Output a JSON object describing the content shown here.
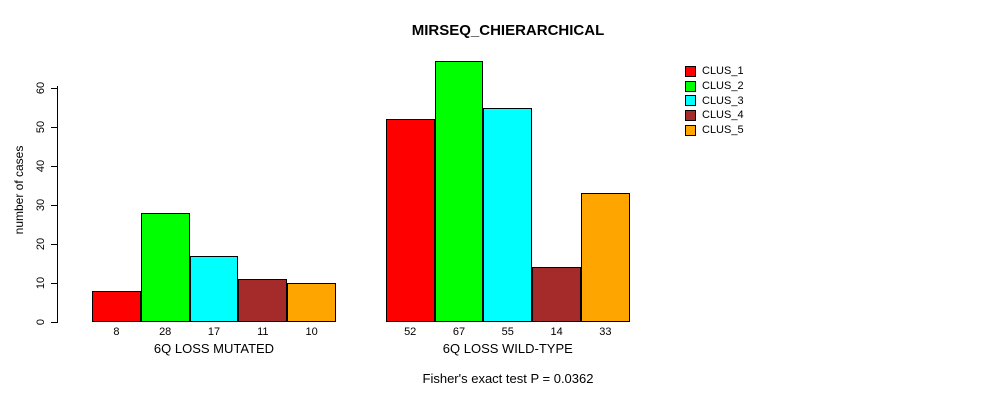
{
  "chart_data": {
    "type": "bar",
    "title": "MIRSEQ_CHIERARCHICAL",
    "ylabel": "number of cases",
    "xlabel": "",
    "categories": [
      "6Q LOSS MUTATED",
      "6Q LOSS WILD-TYPE"
    ],
    "series": [
      {
        "name": "CLUS_1",
        "color": "#FF0000",
        "values": [
          8,
          52
        ]
      },
      {
        "name": "CLUS_2",
        "color": "#00FF00",
        "values": [
          28,
          67
        ]
      },
      {
        "name": "CLUS_3",
        "color": "#00FFFF",
        "values": [
          17,
          55
        ]
      },
      {
        "name": "CLUS_4",
        "color": "#A52A2A",
        "values": [
          11,
          14
        ]
      },
      {
        "name": "CLUS_5",
        "color": "#FFA500",
        "values": [
          10,
          33
        ]
      }
    ],
    "yticks": [
      0,
      10,
      20,
      30,
      40,
      50,
      60
    ],
    "ylim": [
      0,
      67
    ],
    "grid": false,
    "legend_position": "right-outside",
    "bar_value_labels": true,
    "annotation": "Fisher's exact test P = 0.0362",
    "background_color": "#FFFFFF",
    "axis_color": "#000000"
  }
}
